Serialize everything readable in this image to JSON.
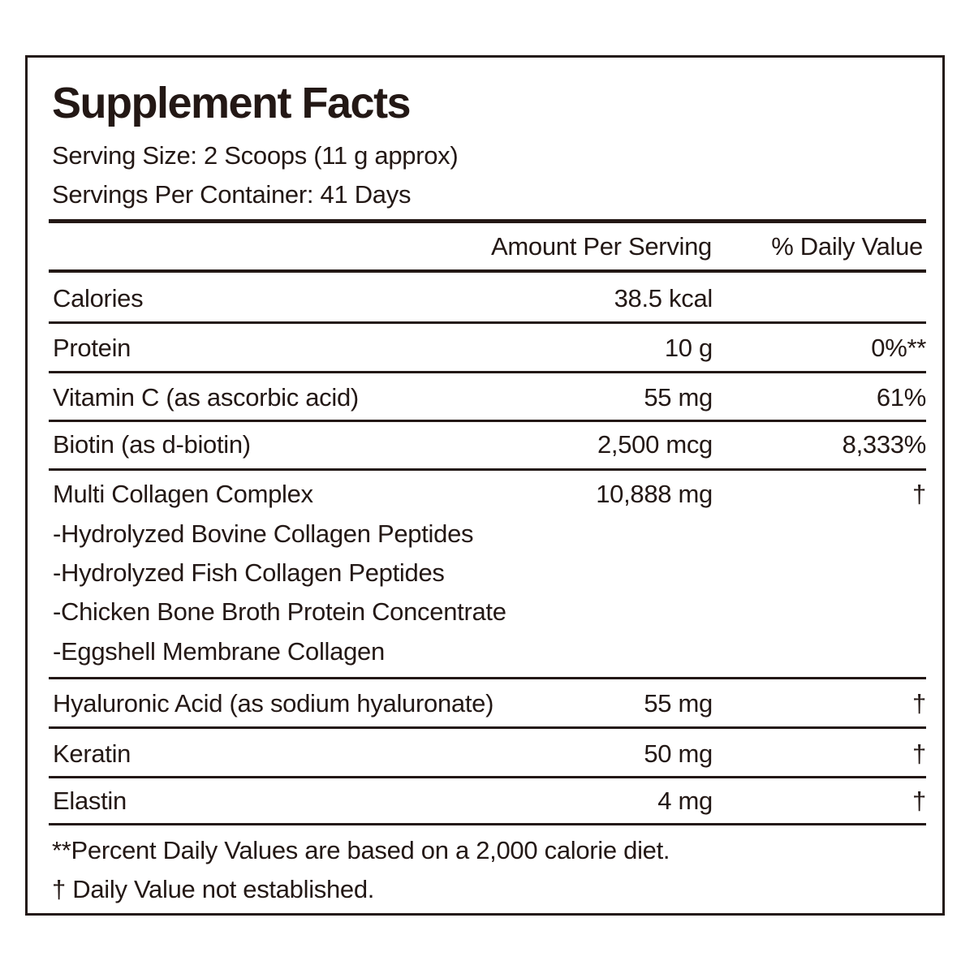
{
  "title": "Supplement Facts",
  "serving_size": "Serving Size: 2 Scoops (11 g approx)",
  "servings_per_container": "Servings Per Container: 41 Days",
  "header": {
    "amount": "Amount Per Serving",
    "daily_value": "% Daily Value"
  },
  "rows": [
    {
      "name": "Calories",
      "amount": "38.5 kcal",
      "dv": ""
    },
    {
      "name": "Protein",
      "amount": "10 g",
      "dv": "0%**"
    },
    {
      "name": "Vitamin C (as ascorbic acid)",
      "amount": "55 mg",
      "dv": "61%"
    },
    {
      "name": "Biotin (as d-biotin)",
      "amount": "2,500 mcg",
      "dv": "8,333%"
    },
    {
      "name": "Multi Collagen Complex",
      "amount": "10,888 mg",
      "dv": "†",
      "sub": [
        "-Hydrolyzed Bovine Collagen Peptides",
        "-Hydrolyzed Fish Collagen Peptides",
        "-Chicken Bone Broth Protein Concentrate",
        "-Eggshell Membrane Collagen"
      ]
    },
    {
      "name": "Hyaluronic Acid (as sodium hyaluronate)",
      "amount": "55 mg",
      "dv": "†"
    },
    {
      "name": "Keratin",
      "amount": "50 mg",
      "dv": "†"
    },
    {
      "name": "Elastin",
      "amount": "4 mg",
      "dv": "†"
    }
  ],
  "footnotes": [
    "**Percent Daily Values are based on a 2,000 calorie diet.",
    "† Daily Value not established."
  ]
}
